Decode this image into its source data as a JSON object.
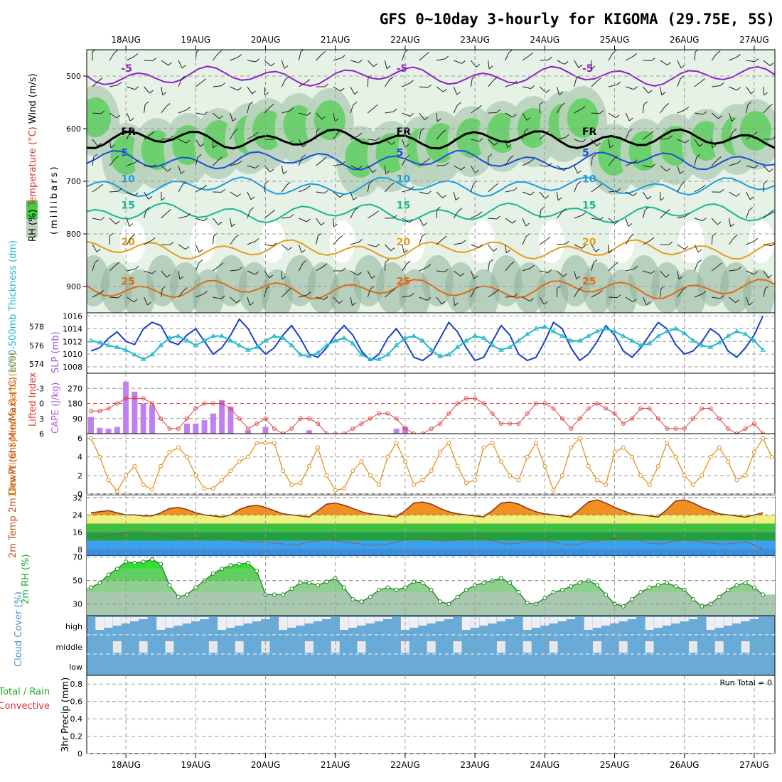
{
  "title": "GFS 0~10day 3-hourly for KIGOMA (29.75E, 5S)",
  "dates": [
    "18AUG",
    "19AUG",
    "20AUG",
    "21AUG",
    "22AUG",
    "23AUG",
    "24AUG",
    "25AUG",
    "26AUG",
    "27AUG"
  ],
  "colors": {
    "grid": "#9a9a9a",
    "rh_light": "#e6f2e6",
    "rh_mid": "#b9d3bd",
    "rh_dark": "#8fb39a",
    "rh_green": "#5fcf5f"
  },
  "chart_data": [
    {
      "type": "heatmap",
      "name": "upper-air",
      "ylabel_parts": [
        "RH (%)",
        "Temperature (°C)",
        "Wind (m/s)"
      ],
      "ylabel2": "(millibars)",
      "pressure_ticks": [
        500,
        600,
        700,
        800,
        900
      ],
      "ylim": [
        950,
        450
      ],
      "isotherms": [
        {
          "label": "-5",
          "color": "#9020c8",
          "level": 500
        },
        {
          "label": "FR",
          "color": "#000000",
          "level": 620
        },
        {
          "label": "5",
          "color": "#1a4fd6",
          "level": 660
        },
        {
          "label": "10",
          "color": "#1a9de0",
          "level": 710
        },
        {
          "label": "15",
          "color": "#18b890",
          "level": 760
        },
        {
          "label": "20",
          "color": "#e89b1a",
          "level": 830
        },
        {
          "label": "25",
          "color": "#e06a12",
          "level": 905
        }
      ]
    },
    {
      "type": "line",
      "name": "slp-thickness",
      "ylabel_left": "1000-500mb Thickness (dm)",
      "ylabel_right": "SLP (mb)",
      "thickness_ticks": [
        574,
        576,
        578
      ],
      "slp_ticks": [
        1008,
        1010,
        1012,
        1014,
        1016
      ],
      "thickness_range": [
        573,
        579.5
      ],
      "slp_range": [
        1007,
        1016.5
      ],
      "series": [
        {
          "name": "SLP (mb)",
          "color": "#1a3fc8",
          "values": [
            1010.5,
            1011,
            1012.5,
            1013.5,
            1012,
            1011.5,
            1014,
            1015,
            1014.5,
            1012,
            1011.5,
            1013,
            1014,
            1012,
            1010,
            1011,
            1013,
            1015.5,
            1014,
            1011.5,
            1010,
            1011,
            1013,
            1014.5,
            1012.5,
            1010,
            1009.5,
            1011,
            1013,
            1014.5,
            1013,
            1010.5,
            1009,
            1010,
            1012.5,
            1014,
            1012,
            1009.5,
            1009,
            1010,
            1012.5,
            1015,
            1013.5,
            1011,
            1009,
            1009.5,
            1012,
            1014.5,
            1013,
            1010,
            1009,
            1009.5,
            1012,
            1015,
            1014,
            1011,
            1009,
            1010,
            1012,
            1014.5,
            1013,
            1010.5,
            1009.5,
            1011,
            1013,
            1015,
            1014,
            1011.5,
            1010,
            1010.5,
            1012,
            1014,
            1013,
            1010.5,
            1009.5,
            1011,
            1013,
            1016
          ]
        },
        {
          "name": "1000-500mb Thickness (dm)",
          "color": "#20b8c8",
          "values": [
            576.5,
            576.3,
            576,
            575.8,
            575.5,
            575,
            574.5,
            575,
            576,
            576.8,
            577,
            576.5,
            576,
            576.5,
            577,
            577,
            576.5,
            576,
            575.5,
            575.8,
            576.5,
            577,
            576.8,
            576,
            575,
            574.8,
            575.2,
            576,
            576.5,
            576.8,
            576.2,
            575,
            574.5,
            574.5,
            575,
            576,
            576.8,
            577,
            576.5,
            575.5,
            574.8,
            575,
            575.8,
            576.5,
            577,
            576.8,
            576,
            575.5,
            575.8,
            576.5,
            577.2,
            577.8,
            578,
            577.5,
            577,
            576.5,
            576.5,
            577,
            577.5,
            577.8,
            577.5,
            577,
            576.5,
            576,
            576.2,
            577,
            577.5,
            577.8,
            577.3,
            576.5,
            576,
            575.8,
            576.3,
            577,
            577.5,
            577.2,
            576.5,
            575.5
          ]
        }
      ]
    },
    {
      "type": "bar",
      "name": "cape-li",
      "ylabel_left": "Lifted Index",
      "ylabel_right": "CAPE (J/kg)",
      "li_ticks": [
        "-3",
        "0",
        "3",
        "6"
      ],
      "cape_ticks": [
        90,
        180,
        270
      ],
      "cape_range": [
        0,
        360
      ],
      "cape_values": [
        100,
        35,
        30,
        40,
        310,
        250,
        180,
        170,
        0,
        0,
        0,
        60,
        60,
        80,
        120,
        200,
        160,
        0,
        20,
        0,
        40,
        0,
        0,
        0,
        0,
        20,
        0,
        0,
        0,
        0,
        0,
        0,
        0,
        0,
        0,
        30,
        40,
        0,
        0,
        0,
        0,
        0,
        0,
        0,
        0,
        0,
        0,
        0,
        0,
        0,
        0,
        0,
        0,
        0,
        0,
        0,
        0,
        0,
        0,
        0,
        0,
        0,
        0,
        0,
        0,
        0,
        0,
        0,
        0,
        0,
        0,
        0,
        0,
        0,
        0,
        0,
        0,
        0
      ],
      "li_values": [
        1.5,
        1.5,
        1,
        0,
        -1,
        -1,
        -1,
        0,
        3,
        5,
        5,
        3,
        1,
        0,
        0,
        0,
        1,
        3,
        5,
        4,
        3,
        5,
        6,
        5,
        3,
        3,
        4,
        6,
        6,
        6,
        5,
        4,
        3,
        2,
        2,
        3,
        5,
        6,
        6,
        5,
        4,
        2,
        0,
        -1,
        -1,
        0,
        2,
        4,
        4,
        4,
        2,
        0,
        0,
        1,
        3,
        5,
        3,
        1,
        0,
        1,
        2,
        4,
        3,
        1,
        1,
        3,
        5,
        5,
        5,
        3,
        1,
        1,
        3,
        5,
        6,
        5,
        4,
        6
      ]
    },
    {
      "type": "line",
      "name": "wind10m",
      "ylabel": "10m Wind Speed & Barbs (m/s)",
      "ticks": [
        0,
        2,
        4,
        6
      ],
      "ylim": [
        0,
        6.5
      ],
      "series": [
        {
          "name": "Speed",
          "color": "#e08a10",
          "values": [
            6,
            4,
            1.5,
            0.3,
            2,
            3,
            1,
            0.5,
            3,
            4.5,
            5,
            4,
            2,
            0.6,
            0.6,
            1.5,
            2.5,
            3.5,
            4,
            5.5,
            5.5,
            5.5,
            2.5,
            1,
            1.2,
            3,
            5,
            2,
            0.4,
            0.6,
            2.5,
            3.5,
            2,
            1,
            4,
            5.5,
            3.5,
            1,
            1.5,
            2.5,
            4.5,
            5.5,
            3,
            1.2,
            1.5,
            5,
            5.5,
            3.5,
            2,
            1.5,
            4,
            5.5,
            3,
            0.4,
            2,
            5,
            6,
            3,
            1.5,
            1,
            4.5,
            5,
            4,
            2,
            1,
            3,
            5.5,
            4,
            2,
            1,
            2,
            4,
            5,
            3.5,
            1.5,
            2,
            4.5,
            6,
            4
          ]
        }
      ]
    },
    {
      "type": "area",
      "name": "temp2m",
      "ylabel": "2m Temp 2m DewPt (6hr Min/Max) (°C)",
      "ticks": [
        8,
        16,
        24,
        32
      ],
      "ylim": [
        5,
        33
      ],
      "series": [
        {
          "name": "2m Temp",
          "color": "#8a3010",
          "values": [
            25,
            25.5,
            26,
            25,
            24,
            24,
            23.5,
            23.5,
            25,
            27,
            27.5,
            26.5,
            25,
            24,
            23.5,
            23,
            24,
            26.5,
            28,
            28.5,
            27.5,
            26,
            24.5,
            24,
            23.5,
            23,
            26,
            29,
            29.5,
            28.5,
            27,
            25.5,
            24.5,
            24,
            23.5,
            23,
            26,
            29.5,
            30,
            29,
            27,
            25.5,
            24.5,
            24,
            23.5,
            23,
            26,
            29.5,
            30,
            29,
            27,
            25.5,
            24.5,
            24,
            23.5,
            23,
            26.5,
            30,
            31,
            29.5,
            27.5,
            26,
            24.5,
            24,
            23.5,
            23,
            26.5,
            30.5,
            31,
            29.5,
            27.5,
            26,
            24.5,
            24,
            23.5,
            23,
            24,
            25
          ]
        },
        {
          "name": "2m DewPt",
          "color": "#a05030",
          "values": [
            14,
            14,
            14.5,
            15,
            16,
            16.5,
            16,
            15,
            14.5,
            14,
            13.5,
            13,
            13,
            13.5,
            14,
            13.5,
            12.5,
            12,
            11.5,
            11.5,
            11.5,
            11,
            10.5,
            10,
            10.5,
            11.5,
            12,
            12.5,
            12,
            11.5,
            11,
            10.5,
            10,
            10,
            10.5,
            11.5,
            12.5,
            13,
            13,
            12.5,
            12,
            12,
            12.5,
            13,
            13.5,
            13,
            12,
            11,
            10.5,
            11,
            11.5,
            12,
            12,
            11.5,
            10.5,
            10,
            10.5,
            11.5,
            12,
            12.5,
            13,
            13.5,
            13,
            12,
            11,
            10.5,
            11,
            12,
            12.5,
            12,
            11.5,
            11,
            10.5,
            10.5,
            11,
            11.5,
            10,
            8
          ]
        }
      ]
    },
    {
      "type": "area",
      "name": "rh2m",
      "ylabel": "2m RH (%)",
      "ticks": [
        30,
        50,
        70
      ],
      "ylim": [
        20,
        71
      ],
      "series": [
        {
          "name": "2m RH",
          "color": "#22aa22",
          "values": [
            44,
            48,
            55,
            60,
            66,
            65,
            66,
            68,
            64,
            46,
            36,
            38,
            44,
            50,
            56,
            60,
            63,
            64,
            65,
            58,
            38,
            38,
            38,
            43,
            48,
            48,
            46,
            49,
            52,
            44,
            34,
            32,
            36,
            42,
            44,
            42,
            44,
            49,
            48,
            42,
            32,
            30,
            36,
            42,
            46,
            48,
            50,
            52,
            48,
            40,
            31,
            30,
            35,
            40,
            42,
            45,
            48,
            50,
            46,
            38,
            30,
            28,
            34,
            40,
            44,
            46,
            48,
            45,
            42,
            34,
            28,
            30,
            36,
            42,
            46,
            48,
            44,
            38
          ]
        }
      ]
    },
    {
      "type": "heatmap",
      "name": "cloud-cover",
      "ylabel": "Cloud Cover (%)",
      "rows": [
        "high",
        "middle",
        "low"
      ]
    },
    {
      "type": "bar",
      "name": "precip",
      "ylabel_parts": [
        "Total / Rain",
        "Convective"
      ],
      "ylabel2": "3hr Precip (mm)",
      "ticks": [
        "0",
        "0.2",
        "0.4",
        "0.6",
        "0.8"
      ],
      "ylim": [
        0,
        0.9
      ],
      "annotation": "Run Total = 0",
      "values": []
    }
  ]
}
